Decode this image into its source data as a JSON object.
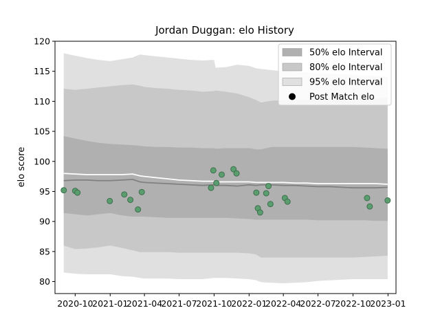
{
  "chart_data": {
    "type": "line",
    "title": "Jordan Duggan: elo History",
    "xlabel": "",
    "ylabel": "elo score",
    "ylim": [
      78,
      120
    ],
    "xlim": [
      "2020-08-09",
      "2023-01-22"
    ],
    "y_ticks": [
      80,
      85,
      90,
      95,
      100,
      105,
      110,
      115,
      120
    ],
    "x_ticks": [
      "2020-10",
      "2021-01",
      "2021-04",
      "2021-07",
      "2021-10",
      "2022-01",
      "2022-04",
      "2022-07",
      "2022-10",
      "2023-01"
    ],
    "grid": false,
    "legend_position": "top-right",
    "legend": [
      {
        "label": "50% elo Interval",
        "kind": "band",
        "color": "#b0b0b0"
      },
      {
        "label": "80% elo Interval",
        "kind": "band",
        "color": "#c8c8c8"
      },
      {
        "label": "95% elo Interval",
        "kind": "band",
        "color": "#e0e0e0"
      },
      {
        "label": "Post Match elo",
        "kind": "marker",
        "color": "#000000"
      }
    ],
    "colors": {
      "band50": "#b0b0b0",
      "band80": "#c8c8c8",
      "band95": "#e0e0e0",
      "median_line": "#808080",
      "mean_line": "#ffffff",
      "points": "#5a9e6f",
      "points_edge": "#3f6e4d"
    },
    "bands": {
      "dates": [
        "2020-09-01",
        "2020-10-01",
        "2020-11-01",
        "2020-12-01",
        "2021-01-01",
        "2021-02-01",
        "2021-03-01",
        "2021-03-20",
        "2021-04-01",
        "2021-05-01",
        "2021-06-01",
        "2021-07-01",
        "2021-08-01",
        "2021-09-01",
        "2021-10-01",
        "2021-10-05",
        "2021-11-01",
        "2021-12-01",
        "2022-01-01",
        "2022-01-20",
        "2022-02-01",
        "2022-03-01",
        "2022-04-01",
        "2022-05-01",
        "2022-06-01",
        "2022-07-01",
        "2022-08-01",
        "2022-09-01",
        "2022-10-01",
        "2022-11-01",
        "2022-12-01",
        "2022-12-31"
      ],
      "upper95": [
        118.0,
        117.6,
        117.2,
        116.9,
        116.7,
        117.0,
        117.3,
        117.8,
        117.7,
        117.5,
        117.3,
        117.1,
        116.9,
        116.8,
        116.9,
        115.6,
        115.7,
        116.1,
        115.9,
        115.5,
        115.4,
        115.2,
        115.0,
        114.9,
        114.8,
        114.7,
        114.6,
        114.5,
        114.4,
        114.3,
        114.2,
        114.1
      ],
      "lower95": [
        81.5,
        81.3,
        81.2,
        81.2,
        81.2,
        80.9,
        80.8,
        80.6,
        80.5,
        80.5,
        80.5,
        80.4,
        80.4,
        80.4,
        80.6,
        80.6,
        80.6,
        80.5,
        80.4,
        80.2,
        79.9,
        79.8,
        79.7,
        79.8,
        79.9,
        80.1,
        80.2,
        80.3,
        80.4,
        80.4,
        80.4,
        80.4
      ],
      "upper80": [
        112.1,
        111.9,
        112.1,
        112.3,
        112.5,
        112.7,
        112.8,
        112.6,
        112.4,
        112.2,
        112.1,
        111.9,
        111.8,
        111.6,
        111.7,
        111.8,
        111.6,
        111.3,
        110.7,
        110.2,
        109.8,
        110.1,
        110.2,
        110.3,
        110.3,
        110.4,
        110.4,
        110.5,
        110.5,
        110.5,
        110.5,
        110.6
      ],
      "lower80": [
        86.0,
        85.4,
        85.5,
        85.7,
        86.0,
        85.6,
        85.2,
        84.9,
        84.9,
        84.9,
        84.9,
        84.8,
        84.8,
        84.8,
        84.8,
        84.8,
        84.8,
        84.8,
        84.7,
        84.5,
        84.0,
        84.0,
        84.0,
        84.0,
        84.0,
        84.0,
        84.0,
        84.0,
        84.0,
        84.1,
        84.2,
        84.3
      ],
      "upper50": [
        104.2,
        103.8,
        103.4,
        103.1,
        102.9,
        102.8,
        102.7,
        102.6,
        102.5,
        102.4,
        102.4,
        102.3,
        102.3,
        102.2,
        102.2,
        102.1,
        102.2,
        102.2,
        102.2,
        102.0,
        102.0,
        102.4,
        102.4,
        102.4,
        102.4,
        102.4,
        102.4,
        102.4,
        102.4,
        102.3,
        102.2,
        102.1
      ],
      "lower50": [
        91.4,
        91.2,
        91.0,
        91.2,
        91.4,
        91.0,
        90.8,
        90.8,
        90.8,
        90.7,
        90.6,
        90.6,
        90.6,
        90.6,
        90.6,
        90.6,
        90.6,
        90.5,
        90.4,
        90.3,
        90.3,
        90.3,
        90.3,
        90.3,
        90.3,
        90.2,
        90.2,
        90.2,
        90.2,
        90.2,
        90.1,
        90.1
      ],
      "median": [
        96.8,
        96.9,
        96.9,
        96.8,
        96.8,
        96.9,
        97.0,
        96.6,
        96.5,
        96.4,
        96.3,
        96.2,
        96.1,
        96.0,
        96.1,
        96.0,
        96.0,
        95.9,
        96.1,
        96.0,
        96.1,
        96.1,
        96.0,
        96.0,
        95.9,
        95.8,
        95.8,
        95.7,
        95.6,
        95.6,
        95.6,
        95.7
      ],
      "mean": [
        98.0,
        97.9,
        97.8,
        97.8,
        97.8,
        97.8,
        97.9,
        97.6,
        97.5,
        97.3,
        97.1,
        96.9,
        96.8,
        96.7,
        96.7,
        96.6,
        96.6,
        96.6,
        96.6,
        96.5,
        96.5,
        96.5,
        96.5,
        96.4,
        96.4,
        96.3,
        96.3,
        96.3,
        96.3,
        96.3,
        96.3,
        96.2
      ]
    },
    "post_match_elo": [
      {
        "x": "2020-09-01",
        "y": 95.2
      },
      {
        "x": "2020-10-01",
        "y": 95.1
      },
      {
        "x": "2020-10-07",
        "y": 94.8
      },
      {
        "x": "2020-12-31",
        "y": 93.4
      },
      {
        "x": "2021-02-07",
        "y": 94.5
      },
      {
        "x": "2021-02-23",
        "y": 93.6
      },
      {
        "x": "2021-03-15",
        "y": 92.0
      },
      {
        "x": "2021-03-25",
        "y": 94.9
      },
      {
        "x": "2021-09-23",
        "y": 95.6
      },
      {
        "x": "2021-09-29",
        "y": 98.5
      },
      {
        "x": "2021-10-07",
        "y": 96.4
      },
      {
        "x": "2021-10-21",
        "y": 97.8
      },
      {
        "x": "2021-11-21",
        "y": 98.7
      },
      {
        "x": "2021-11-29",
        "y": 98.0
      },
      {
        "x": "2022-01-20",
        "y": 94.8
      },
      {
        "x": "2022-01-24",
        "y": 92.2
      },
      {
        "x": "2022-01-30",
        "y": 91.5
      },
      {
        "x": "2022-02-15",
        "y": 94.7
      },
      {
        "x": "2022-02-21",
        "y": 95.9
      },
      {
        "x": "2022-02-26",
        "y": 92.9
      },
      {
        "x": "2022-04-05",
        "y": 93.9
      },
      {
        "x": "2022-04-12",
        "y": 93.3
      },
      {
        "x": "2022-11-07",
        "y": 93.9
      },
      {
        "x": "2022-11-14",
        "y": 92.5
      },
      {
        "x": "2022-12-31",
        "y": 93.5
      }
    ]
  }
}
